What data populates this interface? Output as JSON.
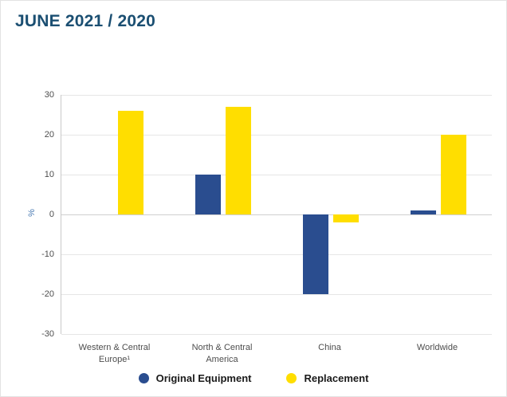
{
  "page": {
    "title": "JUNE 2021 / 2020"
  },
  "chart_data": {
    "type": "bar",
    "title": "JUNE 2021 / 2020",
    "categories": [
      "Western & Central Europe¹",
      "North & Central America",
      "China",
      "Worldwide"
    ],
    "series": [
      {
        "name": "Original Equipment",
        "color": "#2a4d8f",
        "values": [
          0,
          10,
          -20,
          1
        ]
      },
      {
        "name": "Replacement",
        "color": "#ffde00",
        "values": [
          26,
          27,
          -2,
          20
        ]
      }
    ],
    "xlabel": "",
    "ylabel": "%",
    "ylim": [
      -30,
      30
    ],
    "yticks": [
      -30,
      -20,
      -10,
      0,
      10,
      20,
      30
    ],
    "grid": true,
    "legend_position": "bottom",
    "colors": {
      "title": "#1b4f72",
      "original_equipment": "#2a4d8f",
      "replacement": "#ffde00",
      "gridline": "#e6e6e6",
      "tick_text": "#4d4d4d"
    }
  }
}
